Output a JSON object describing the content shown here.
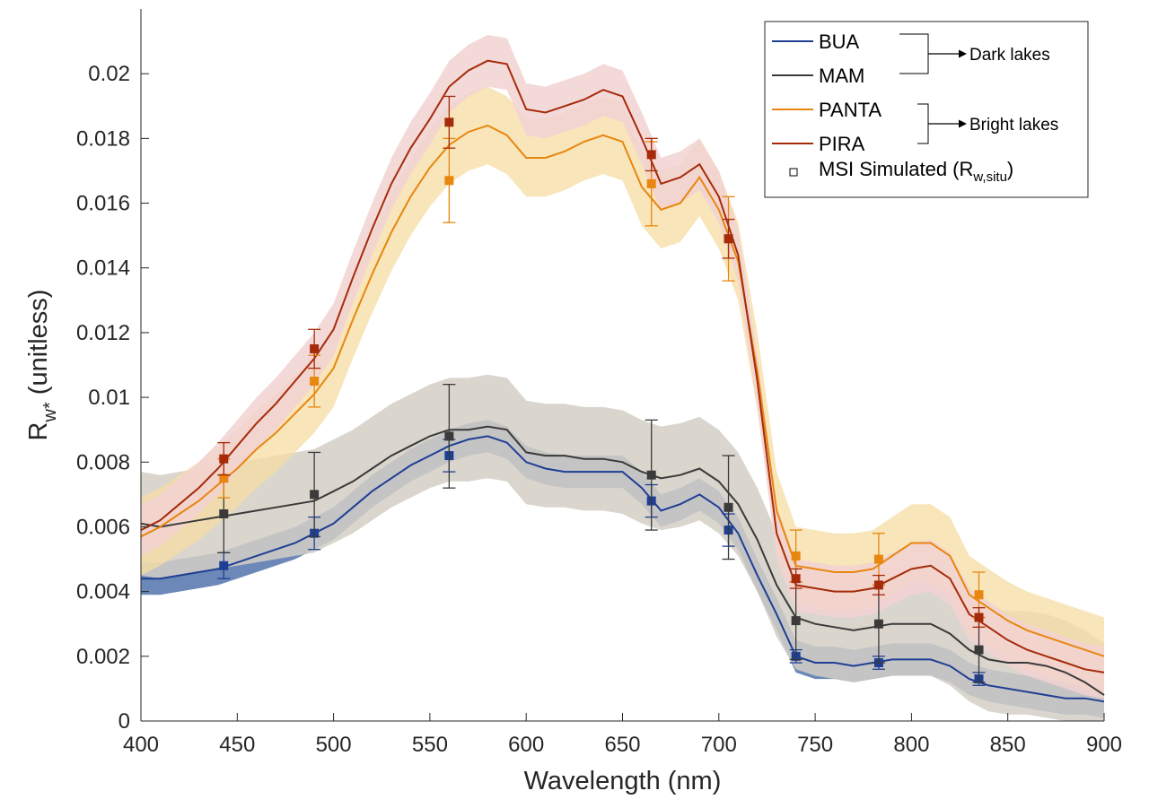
{
  "chart_data": {
    "type": "line",
    "xlabel": "Wavelength (nm)",
    "ylabel": {
      "main": "R",
      "sub": "w*",
      "rest": " (unitless)"
    },
    "xlim": [
      400,
      900
    ],
    "ylim": [
      0,
      0.022
    ],
    "xticks": [
      400,
      450,
      500,
      550,
      600,
      650,
      700,
      750,
      800,
      850,
      900
    ],
    "xtick_labels": [
      "400",
      "450",
      "500",
      "550",
      "600",
      "650",
      "700",
      "750",
      "800",
      "850",
      "900"
    ],
    "yticks": [
      0,
      0.002,
      0.004,
      0.006,
      0.008,
      0.01,
      0.012,
      0.014,
      0.016,
      0.018,
      0.02
    ],
    "ytick_labels": [
      "0",
      "0.002",
      "0.004",
      "0.006",
      "0.008",
      "0.01",
      "0.012",
      "0.014",
      "0.016",
      "0.018",
      "0.02"
    ],
    "grid": false,
    "legend_position": "top-right",
    "series": [
      {
        "name": "BUA",
        "color": "#1f3f94",
        "band_color": "#5b7bb0",
        "band_opacity": 0.9,
        "x": [
          400,
          410,
          420,
          430,
          440,
          450,
          460,
          470,
          480,
          490,
          500,
          510,
          520,
          530,
          540,
          550,
          560,
          570,
          580,
          590,
          600,
          610,
          620,
          630,
          640,
          650,
          660,
          670,
          680,
          690,
          700,
          710,
          720,
          730,
          740,
          750,
          760,
          770,
          780,
          790,
          800,
          810,
          820,
          830,
          840,
          850,
          860,
          870,
          880,
          890,
          900
        ],
        "y": [
          0.0044,
          0.0044,
          0.0045,
          0.0046,
          0.0047,
          0.0049,
          0.0051,
          0.0053,
          0.0055,
          0.0058,
          0.0061,
          0.0066,
          0.0071,
          0.0075,
          0.0079,
          0.0082,
          0.0085,
          0.0087,
          0.0088,
          0.0086,
          0.008,
          0.0078,
          0.0077,
          0.0077,
          0.0077,
          0.0077,
          0.0072,
          0.0065,
          0.0067,
          0.007,
          0.0066,
          0.0058,
          0.0045,
          0.0033,
          0.002,
          0.0018,
          0.0018,
          0.0017,
          0.0018,
          0.0019,
          0.0019,
          0.0019,
          0.0017,
          0.0013,
          0.0011,
          0.001,
          0.0009,
          0.0008,
          0.0007,
          0.0007,
          0.0006
        ],
        "band": 0.0005,
        "msi_x": [
          443,
          490,
          560,
          665,
          705,
          740,
          783,
          835
        ],
        "msi_y": [
          0.0048,
          0.0058,
          0.0082,
          0.0068,
          0.0059,
          0.002,
          0.0018,
          0.0013
        ],
        "msi_err": [
          0.0004,
          0.0005,
          0.0005,
          0.0005,
          0.0005,
          0.0002,
          0.0002,
          0.0002
        ]
      },
      {
        "name": "MAM",
        "color": "#3a3a3a",
        "band_color": "#d3cfc6",
        "band_opacity": 0.85,
        "x": [
          400,
          410,
          420,
          430,
          440,
          450,
          460,
          470,
          480,
          490,
          500,
          510,
          520,
          530,
          540,
          550,
          560,
          570,
          580,
          590,
          600,
          610,
          620,
          630,
          640,
          650,
          660,
          670,
          680,
          690,
          700,
          710,
          720,
          730,
          740,
          750,
          760,
          770,
          780,
          790,
          800,
          810,
          820,
          830,
          840,
          850,
          860,
          870,
          880,
          890,
          900
        ],
        "y": [
          0.0061,
          0.006,
          0.0061,
          0.0062,
          0.0063,
          0.0064,
          0.0065,
          0.0066,
          0.0067,
          0.0068,
          0.0071,
          0.0074,
          0.0078,
          0.0082,
          0.0085,
          0.0088,
          0.009,
          0.009,
          0.0091,
          0.009,
          0.0083,
          0.0082,
          0.0082,
          0.0081,
          0.0081,
          0.008,
          0.0077,
          0.0075,
          0.0076,
          0.0078,
          0.0074,
          0.0067,
          0.0056,
          0.0042,
          0.0032,
          0.003,
          0.0029,
          0.0028,
          0.0029,
          0.003,
          0.003,
          0.003,
          0.0027,
          0.0022,
          0.0019,
          0.0018,
          0.0018,
          0.0017,
          0.0015,
          0.0012,
          0.0008
        ],
        "band": 0.0016,
        "msi_x": [
          443,
          490,
          560,
          665,
          705,
          740,
          783,
          835
        ],
        "msi_y": [
          0.0064,
          0.007,
          0.0088,
          0.0076,
          0.0066,
          0.0031,
          0.003,
          0.0022
        ],
        "msi_err": [
          0.0012,
          0.0013,
          0.0016,
          0.0017,
          0.0016,
          0.0012,
          0.0012,
          0.001
        ]
      },
      {
        "name": "PANTA",
        "color": "#e8860f",
        "band_color": "#f6dca3",
        "band_opacity": 0.75,
        "x": [
          400,
          410,
          420,
          430,
          440,
          450,
          460,
          470,
          480,
          490,
          500,
          510,
          520,
          530,
          540,
          550,
          560,
          570,
          580,
          590,
          600,
          610,
          620,
          630,
          640,
          650,
          660,
          670,
          680,
          690,
          700,
          710,
          720,
          730,
          740,
          750,
          760,
          770,
          780,
          790,
          800,
          810,
          820,
          830,
          840,
          850,
          860,
          870,
          880,
          890,
          900
        ],
        "y": [
          0.0057,
          0.006,
          0.0064,
          0.0068,
          0.0073,
          0.0078,
          0.0084,
          0.0089,
          0.0095,
          0.0101,
          0.0109,
          0.0124,
          0.0138,
          0.0151,
          0.0162,
          0.0171,
          0.0178,
          0.0182,
          0.0184,
          0.0181,
          0.0174,
          0.0174,
          0.0176,
          0.0179,
          0.0181,
          0.0179,
          0.0165,
          0.0158,
          0.016,
          0.0168,
          0.0158,
          0.0142,
          0.0108,
          0.0065,
          0.0048,
          0.0047,
          0.0046,
          0.0046,
          0.0047,
          0.0051,
          0.0055,
          0.0055,
          0.0051,
          0.0039,
          0.0035,
          0.0031,
          0.0028,
          0.0026,
          0.0024,
          0.0022,
          0.002
        ],
        "band": 0.0012,
        "msi_x": [
          443,
          490,
          560,
          665,
          705,
          740,
          783,
          835
        ],
        "msi_y": [
          0.0075,
          0.0105,
          0.0167,
          0.0166,
          0.0149,
          0.0051,
          0.005,
          0.0039
        ],
        "msi_err": [
          0.0006,
          0.0008,
          0.0013,
          0.0013,
          0.0013,
          0.0008,
          0.0008,
          0.0007
        ]
      },
      {
        "name": "PIRA",
        "color": "#a52b0a",
        "band_color": "#f2d2d2",
        "band_opacity": 0.85,
        "x": [
          400,
          410,
          420,
          430,
          440,
          450,
          460,
          470,
          480,
          490,
          500,
          510,
          520,
          530,
          540,
          550,
          560,
          570,
          580,
          590,
          600,
          610,
          620,
          630,
          640,
          650,
          660,
          670,
          680,
          690,
          700,
          710,
          720,
          730,
          740,
          750,
          760,
          770,
          780,
          790,
          800,
          810,
          820,
          830,
          840,
          850,
          860,
          870,
          880,
          890,
          900
        ],
        "y": [
          0.0059,
          0.0062,
          0.0067,
          0.0072,
          0.0078,
          0.0085,
          0.0092,
          0.0098,
          0.0105,
          0.0112,
          0.0121,
          0.0137,
          0.0152,
          0.0166,
          0.0177,
          0.0186,
          0.0196,
          0.0201,
          0.0204,
          0.0203,
          0.0189,
          0.0188,
          0.019,
          0.0192,
          0.0195,
          0.0193,
          0.018,
          0.0166,
          0.0168,
          0.0172,
          0.0162,
          0.0144,
          0.0105,
          0.0058,
          0.0042,
          0.0041,
          0.004,
          0.004,
          0.0041,
          0.0044,
          0.0047,
          0.0048,
          0.0044,
          0.0033,
          0.0029,
          0.0025,
          0.0022,
          0.002,
          0.0018,
          0.0016,
          0.0015
        ],
        "band": 0.0008,
        "msi_x": [
          443,
          490,
          560,
          665,
          705,
          740,
          783,
          835
        ],
        "msi_y": [
          0.0081,
          0.0115,
          0.0185,
          0.0175,
          0.0149,
          0.0044,
          0.0042,
          0.0032
        ],
        "msi_err": [
          0.0005,
          0.0006,
          0.0008,
          0.0005,
          0.0006,
          0.0003,
          0.0003,
          0.0003
        ]
      }
    ],
    "legend": {
      "entries": [
        "BUA",
        "MAM",
        "PANTA",
        "PIRA"
      ],
      "marker_label": {
        "main": "MSI Simulated (R",
        "sub": "w,situ",
        "rest": ")"
      },
      "groups": [
        {
          "label": "Dark lakes",
          "members": [
            "BUA",
            "MAM"
          ]
        },
        {
          "label": "Bright lakes",
          "members": [
            "PANTA",
            "PIRA"
          ]
        }
      ]
    }
  }
}
